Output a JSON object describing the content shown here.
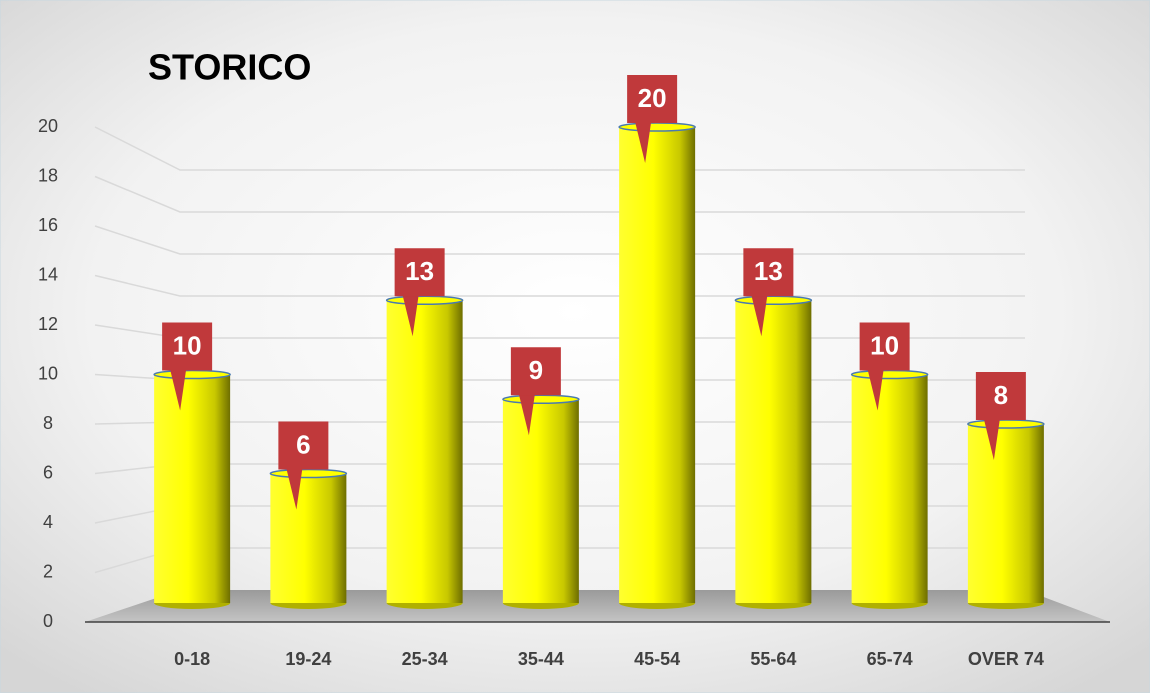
{
  "chart_data": {
    "type": "bar",
    "title": "STORICO",
    "categories": [
      "0-18",
      "19-24",
      "25-34",
      "35-44",
      "45-54",
      "55-64",
      "65-74",
      "OVER 74"
    ],
    "values": [
      10,
      6,
      13,
      9,
      20,
      13,
      10,
      8
    ],
    "color": "#ffff00",
    "label_color": "#c0393b",
    "ylim": [
      0,
      20
    ],
    "yticks": [
      0,
      2,
      4,
      6,
      8,
      10,
      12,
      14,
      16,
      18,
      20
    ],
    "grid": true
  }
}
